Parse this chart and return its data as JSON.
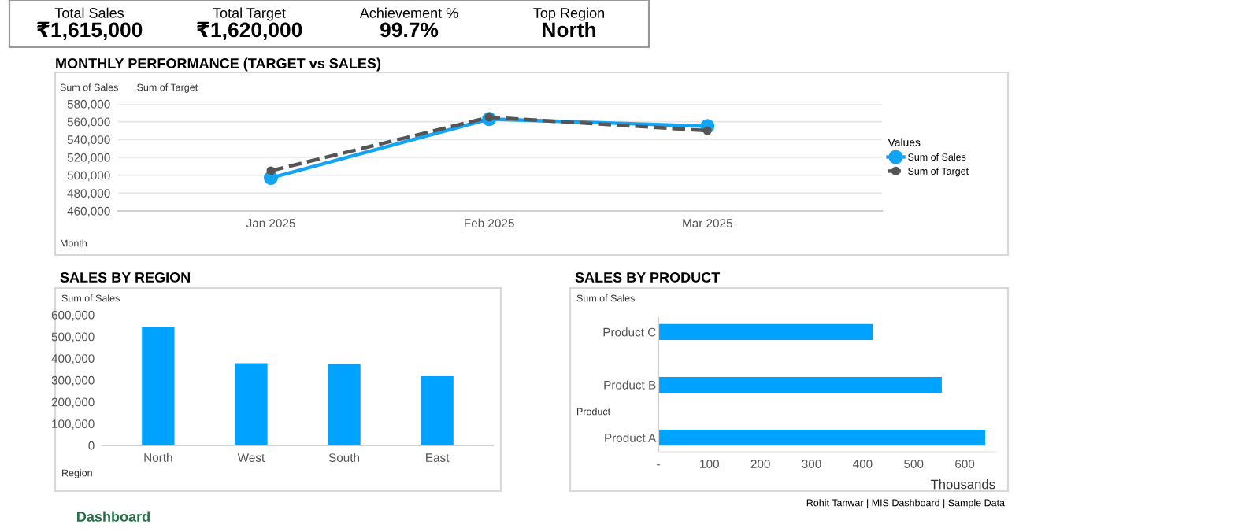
{
  "chart_data": [
    {
      "type": "other",
      "annotations": [
        "Total Sales",
        "₹1,615,000",
        "Total Target",
        "₹1,620,000",
        "Achievement %",
        "99.7%",
        "Top Region",
        "North"
      ]
    },
    {
      "type": "line",
      "title": "MONTHLY PERFORMANCE (TARGET vs SALES)",
      "categories": [
        "Jan 2025",
        "Feb 2025",
        "Mar 2025"
      ],
      "series": [
        {
          "name": "Sum of Sales",
          "color": "#12a4f5",
          "values": [
            497000,
            563000,
            555000
          ],
          "line_style": "solid"
        },
        {
          "name": "Sum of Target",
          "color": "#555555",
          "values": [
            505000,
            565000,
            550000
          ],
          "line_style": "dashed"
        }
      ],
      "ylim": [
        460000,
        580000
      ],
      "yticks": [
        {
          "value": 460000,
          "label": "460,000"
        },
        {
          "value": 480000,
          "label": "480,000"
        },
        {
          "value": 500000,
          "label": "500,000"
        },
        {
          "value": 520000,
          "label": "520,000"
        },
        {
          "value": 540000,
          "label": "540,000"
        },
        {
          "value": 560000,
          "label": "560,000"
        },
        {
          "value": 580000,
          "label": "580,000"
        }
      ],
      "grid": "y",
      "marker": "circle",
      "legend": "right",
      "legend_title": "Values",
      "annotations": [
        "Sum of Sales",
        "Sum of Target",
        "Month"
      ]
    },
    {
      "type": "bar",
      "title": "SALES BY REGION",
      "categories": [
        "North",
        "West",
        "South",
        "East"
      ],
      "values": [
        545000,
        378000,
        374000,
        318000
      ],
      "color": "#00a2ff",
      "ylim": [
        0,
        600000
      ],
      "yticks": [
        0,
        {
          "value": 100000,
          "label": "100,000"
        },
        {
          "value": 200000,
          "label": "200,000"
        },
        {
          "value": 300000,
          "label": "300,000"
        },
        {
          "value": 400000,
          "label": "400,000"
        },
        {
          "value": 500000,
          "label": "500,000"
        },
        {
          "value": 600000,
          "label": "600,000"
        }
      ],
      "annotations": [
        "Sum of Sales",
        "Region"
      ]
    },
    {
      "type": "bar",
      "orientation": "horizontal",
      "title": "SALES BY PRODUCT",
      "categories": [
        "Product C",
        "Product B",
        "Product A"
      ],
      "values": [
        420,
        555,
        640
      ],
      "color": "#00a2ff",
      "xlim": [
        0,
        660
      ],
      "xticks": [
        {
          "value": 0,
          "label": "-"
        },
        100,
        200,
        300,
        400,
        500,
        600
      ],
      "xlabel": "Thousands",
      "annotations": [
        "Sum of Sales",
        "Product"
      ]
    },
    {
      "type": "other",
      "annotations": [
        "Rohit Tanwar | MIS Dashboard | Sample Data",
        "Dashboard"
      ]
    }
  ]
}
